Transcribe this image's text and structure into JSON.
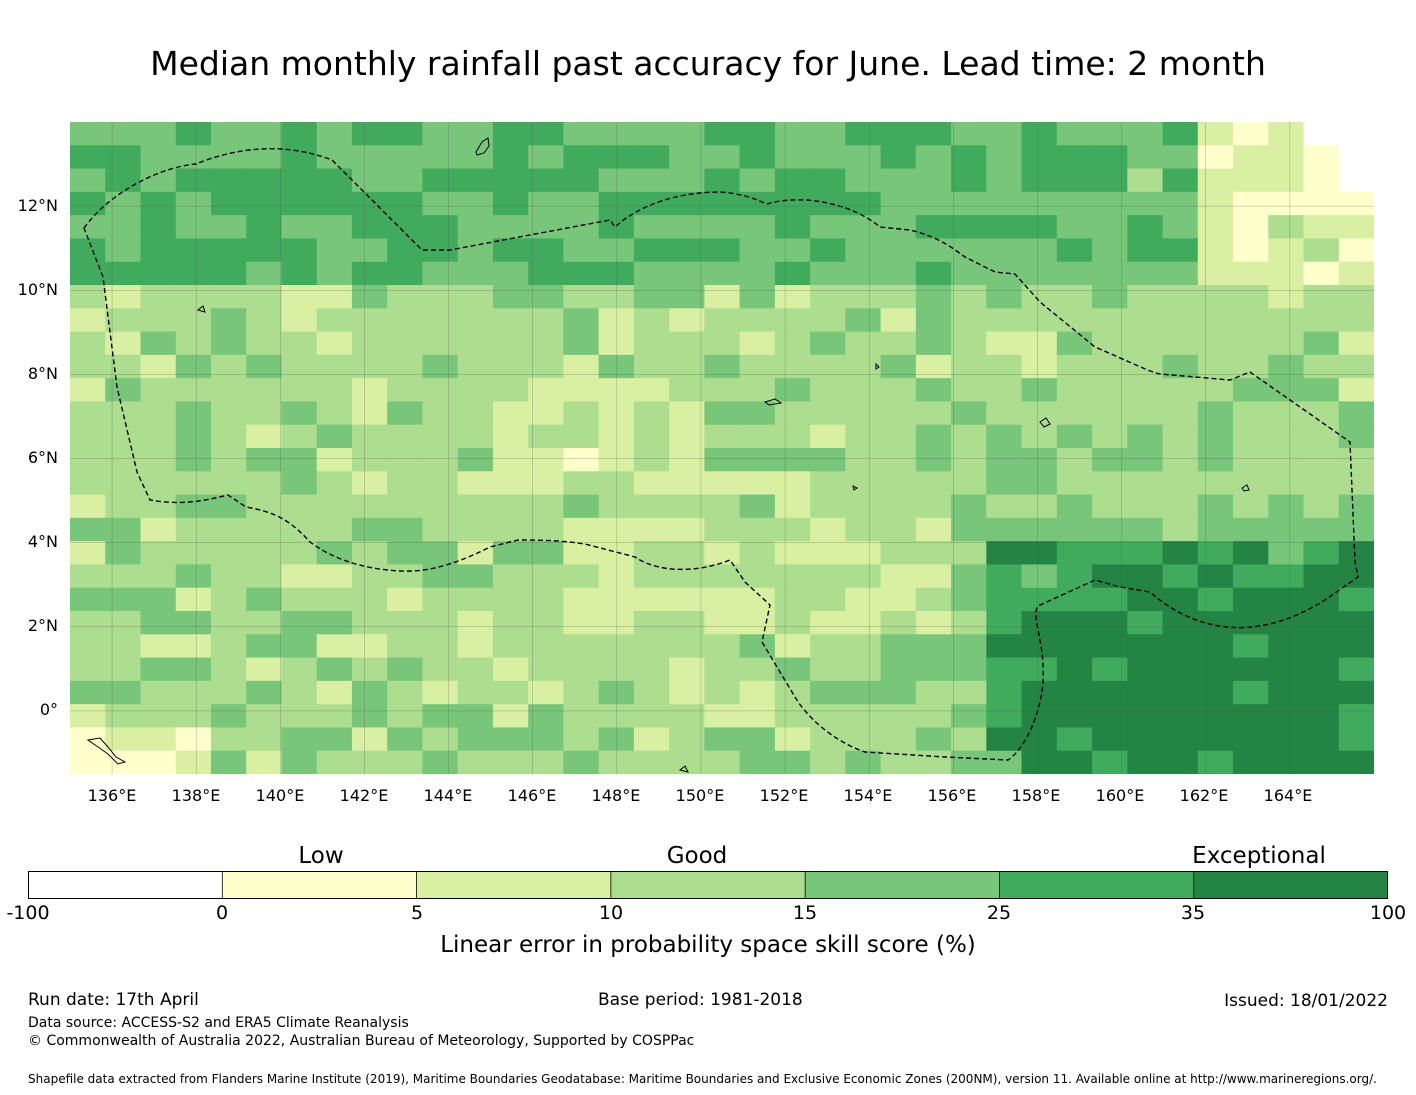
{
  "title": "Median monthly rainfall past accuracy for June. Lead time: 2 month",
  "map": {
    "lon_range": [
      135,
      166
    ],
    "lat_range": [
      -1.5,
      14
    ],
    "lon_ticks": [
      "136°E",
      "138°E",
      "140°E",
      "142°E",
      "144°E",
      "146°E",
      "148°E",
      "150°E",
      "152°E",
      "154°E",
      "156°E",
      "158°E",
      "160°E",
      "162°E",
      "164°E"
    ],
    "lat_ticks": [
      "12°N",
      "10°N",
      "8°N",
      "6°N",
      "4°N",
      "2°N",
      "0°"
    ],
    "boundary_style": "dashed black line (EEZ)"
  },
  "legend": {
    "categories": [
      "Low",
      "Good",
      "Exceptional"
    ],
    "bins": [
      {
        "from": -100,
        "to": 0,
        "color": "#ffffff"
      },
      {
        "from": 0,
        "to": 5,
        "color": "#ffffcc"
      },
      {
        "from": 5,
        "to": 10,
        "color": "#d9f0a3"
      },
      {
        "from": 10,
        "to": 15,
        "color": "#addd8e"
      },
      {
        "from": 15,
        "to": 25,
        "color": "#78c679"
      },
      {
        "from": 25,
        "to": 35,
        "color": "#41ab5d"
      },
      {
        "from": 35,
        "to": 100,
        "color": "#238443"
      }
    ],
    "tick_labels": [
      "-100",
      "0",
      "5",
      "10",
      "15",
      "25",
      "35",
      "100"
    ],
    "label": "Linear error in probability space skill score (%)"
  },
  "footer": {
    "run_date": "Run date: 17th April",
    "base_period": "Base period: 1981-2018",
    "issued": "Issued: 18/01/2022",
    "data_source": "Data source: ACCESS-S2 and ERA5 Climate Reanalysis",
    "copyright": "© Commonwealth of Australia 2022, Australian Bureau of Meteorology, Supported by COSPPac",
    "shapefile": "Shapefile data extracted from Flanders Marine Institute (2019), Maritime Boundaries Geodatabase: Maritime Boundaries and Exclusive Economic Zones (200NM), version 11. Available online at http://www.marineregions.org/."
  }
}
